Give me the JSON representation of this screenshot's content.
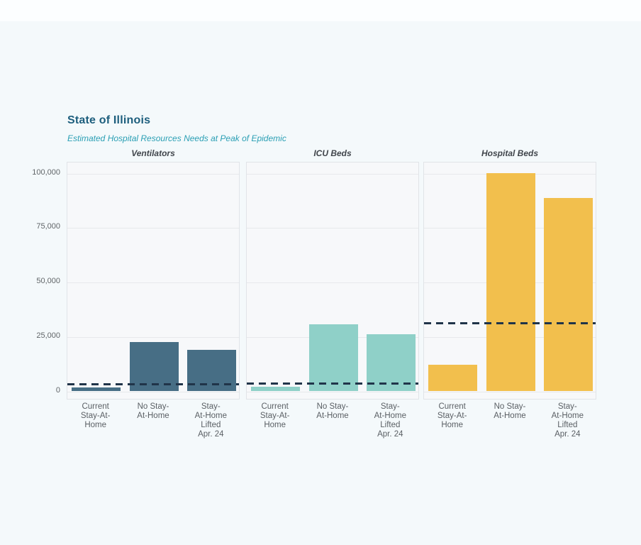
{
  "page": {
    "background": "#f4f9fb",
    "top_strip": "#fcfeff"
  },
  "header": {
    "title": "State of Illinois",
    "subtitle": "Estimated Hospital Resources Needs at Peak of Epidemic",
    "title_color": "#1d5e7d",
    "subtitle_color": "#2a9fb4"
  },
  "chart_data": {
    "type": "bar",
    "title": "State of Illinois",
    "subtitle": "Estimated Hospital Resources Needs at Peak of Epidemic",
    "categories": [
      "Current\nStay-At-\nHome",
      "No Stay-\nAt-Home",
      "Stay-\nAt-Home\nLifted\nApr. 24"
    ],
    "facets": [
      {
        "title": "Ventilators",
        "bar_color": "#476e85",
        "values": [
          1800,
          22500,
          19000
        ],
        "capacity_line": 3400
      },
      {
        "title": "ICU Beds",
        "bar_color": "#8fd0c8",
        "values": [
          2100,
          30700,
          26200
        ],
        "capacity_line": 3600
      },
      {
        "title": "Hospital Beds",
        "bar_color": "#f2bf4d",
        "values": [
          12100,
          100200,
          88600
        ],
        "capacity_line": 31400
      }
    ],
    "y_ticks": [
      0,
      25000,
      50000,
      75000,
      100000
    ],
    "y_tick_labels": [
      "0",
      "25,000",
      "50,000",
      "75,000",
      "100,000"
    ],
    "ylim": [
      0,
      107000
    ],
    "grid": "horizontal-only",
    "legend": "none",
    "dashed_line_color": "#203449",
    "dashed_line_meaning": "capacity reference line",
    "panel_bg": "#f7f8fa",
    "grid_color": "#e7e9ec"
  }
}
